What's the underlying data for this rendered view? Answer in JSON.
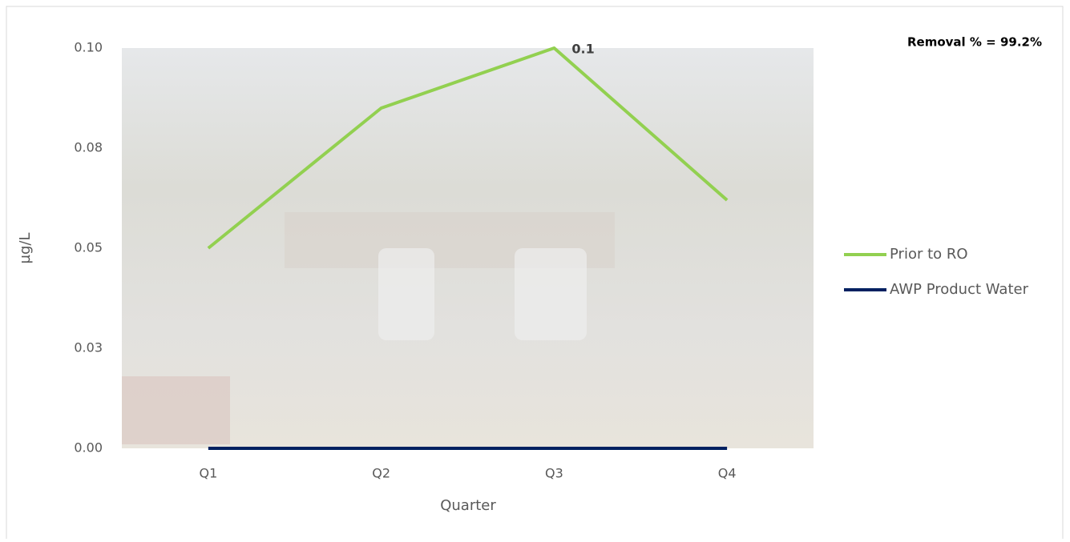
{
  "chart_data": {
    "type": "line",
    "annotation": "Removal % = 99.2%",
    "x_label": "Quarter",
    "y_label": "µg/L",
    "categories": [
      "Q1",
      "Q2",
      "Q3",
      "Q4"
    ],
    "series": [
      {
        "name": "Prior to RO",
        "color": "#92d050",
        "values": [
          0.05,
          0.085,
          0.1,
          0.062
        ],
        "value_labels": [
          null,
          null,
          "0.1",
          null
        ]
      },
      {
        "name": "AWP Product Water",
        "color": "#002060",
        "values": [
          0,
          0,
          0,
          0
        ]
      }
    ],
    "ylim": [
      0,
      0.1
    ],
    "yticks": [
      {
        "value": 0,
        "label": "0.00"
      },
      {
        "value": 0.025,
        "label": "0.03"
      },
      {
        "value": 0.05,
        "label": "0.05"
      },
      {
        "value": 0.075,
        "label": "0.08"
      },
      {
        "value": 0.1,
        "label": "0.10"
      }
    ],
    "legend": "right"
  }
}
